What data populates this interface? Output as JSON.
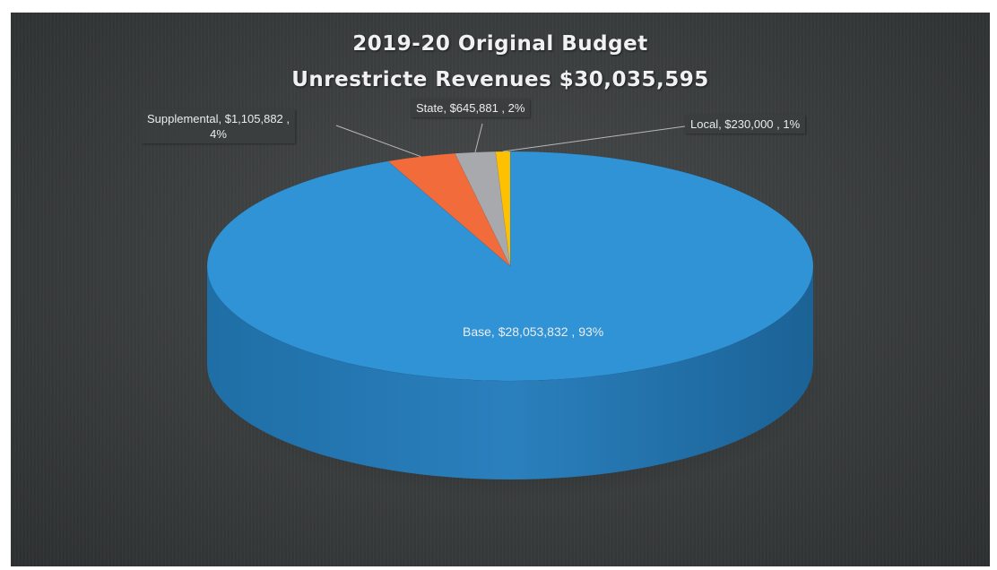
{
  "chart_data": {
    "type": "pie",
    "title": "2019-20 Original Budget",
    "subtitle": "Unrestricte Revenues $30,035,595",
    "slices": [
      {
        "name": "Base",
        "value": 28053832,
        "percent": 93,
        "label_line1": "Base, $28,053,832 , 93%",
        "label_line2": "",
        "color": "#2f93d6"
      },
      {
        "name": "Supplemental",
        "value": 1105882,
        "percent": 4,
        "label_line1": "Supplemental, $1,105,882 ,",
        "label_line2": "4%",
        "color": "#f26b3a"
      },
      {
        "name": "State",
        "value": 645881,
        "percent": 2,
        "label_line1": "State, $645,881 , 2%",
        "label_line2": "",
        "color": "#a7a9ac"
      },
      {
        "name": "Local",
        "value": 230000,
        "percent": 1,
        "label_line1": "Local, $230,000 , 1%",
        "label_line2": "",
        "color": "#ffc000"
      }
    ],
    "legend": "none",
    "style": "3d-pie",
    "background": "#3c3f40"
  }
}
